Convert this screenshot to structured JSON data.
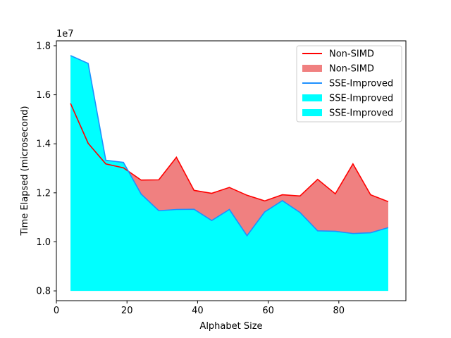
{
  "chart_data": {
    "type": "area",
    "xlabel": "Alphabet Size",
    "ylabel": "Time Elapsed (microsecond)",
    "y_offset_label": "1e7",
    "xlim": [
      0,
      99
    ],
    "ylim": [
      7.6,
      18.2
    ],
    "x_ticks": [
      0,
      20,
      40,
      60,
      80
    ],
    "y_ticks": [
      8.0,
      10.0,
      12.0,
      14.0,
      16.0,
      18.0
    ],
    "y_tick_labels": [
      "0.8",
      "1.0",
      "1.2",
      "1.4",
      "1.6",
      "1.8"
    ],
    "fill_base": 8.0,
    "x": [
      4,
      9,
      14,
      19,
      24,
      29,
      34,
      39,
      44,
      49,
      54,
      59,
      64,
      69,
      74,
      79,
      84,
      89,
      94
    ],
    "series": [
      {
        "name": "Non-SIMD",
        "values": [
          15.65,
          14.02,
          13.18,
          13.02,
          12.52,
          12.53,
          13.45,
          12.1,
          11.98,
          12.22,
          11.9,
          11.67,
          11.92,
          11.87,
          12.55,
          11.96,
          13.18,
          11.92,
          11.64
        ]
      },
      {
        "name": "SSE-Improved",
        "values": [
          17.6,
          17.28,
          13.33,
          13.24,
          11.95,
          11.27,
          11.32,
          11.33,
          10.87,
          11.32,
          10.25,
          11.22,
          11.68,
          11.2,
          10.45,
          10.43,
          10.34,
          10.37,
          10.58
        ]
      }
    ],
    "legend": {
      "placement": "top-right",
      "entries": [
        {
          "label": "Non-SIMD",
          "kind": "line",
          "color": "#ff0000"
        },
        {
          "label": "Non-SIMD",
          "kind": "patch",
          "color": "#f08080"
        },
        {
          "label": "SSE-Improved",
          "kind": "line",
          "color": "#1e90ff"
        },
        {
          "label": "SSE-Improved",
          "kind": "patch",
          "color": "#00ffff"
        },
        {
          "label": "SSE-Improved",
          "kind": "patch",
          "color": "#00ffff"
        }
      ]
    },
    "colors": {
      "nonsimd_line": "#ff0000",
      "nonsimd_fill": "#f08080",
      "sse_line": "#1e90ff",
      "sse_fill": "#00ffff"
    }
  }
}
